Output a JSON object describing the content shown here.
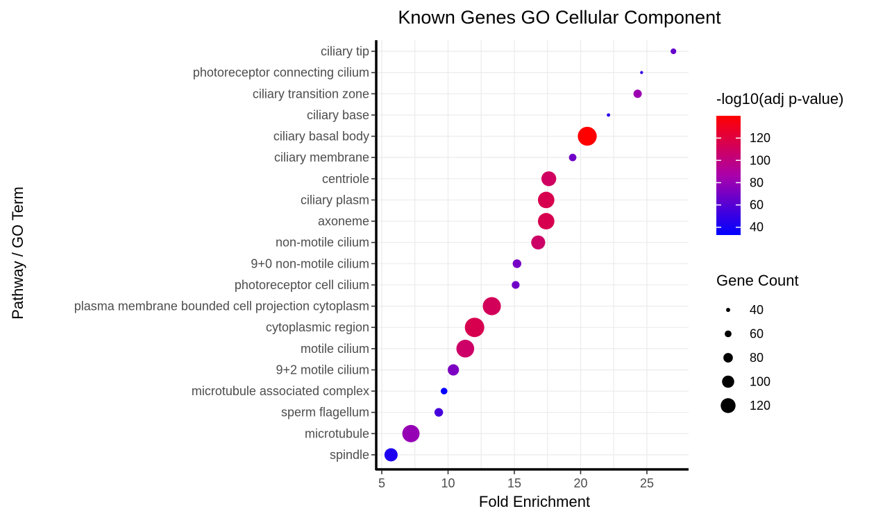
{
  "chart_data": {
    "type": "scatter",
    "title": "Known Genes GO Cellular Component",
    "xlabel": "Fold Enrichment",
    "ylabel": "Pathway / GO Term",
    "xlim": [
      4.7,
      28.0
    ],
    "xticks": [
      5,
      10,
      15,
      20,
      25
    ],
    "grid": true,
    "points": [
      {
        "term": "ciliary tip",
        "fold_enrichment": 27.0,
        "neg_log10_adj_p": 65,
        "gene_count": 44
      },
      {
        "term": "photoreceptor connecting cilium",
        "fold_enrichment": 24.6,
        "neg_log10_adj_p": 50,
        "gene_count": 28
      },
      {
        "term": "ciliary transition zone",
        "fold_enrichment": 24.3,
        "neg_log10_adj_p": 82,
        "gene_count": 60
      },
      {
        "term": "ciliary base",
        "fold_enrichment": 22.1,
        "neg_log10_adj_p": 45,
        "gene_count": 30
      },
      {
        "term": "ciliary basal body",
        "fold_enrichment": 20.5,
        "neg_log10_adj_p": 140,
        "gene_count": 125
      },
      {
        "term": "ciliary membrane",
        "fold_enrichment": 19.4,
        "neg_log10_adj_p": 68,
        "gene_count": 55
      },
      {
        "term": "centriole",
        "fold_enrichment": 17.6,
        "neg_log10_adj_p": 110,
        "gene_count": 100
      },
      {
        "term": "ciliary plasm",
        "fold_enrichment": 17.4,
        "neg_log10_adj_p": 115,
        "gene_count": 110
      },
      {
        "term": "axoneme",
        "fold_enrichment": 17.4,
        "neg_log10_adj_p": 115,
        "gene_count": 110
      },
      {
        "term": "non-motile cilium",
        "fold_enrichment": 16.8,
        "neg_log10_adj_p": 108,
        "gene_count": 95
      },
      {
        "term": "9+0 non-motile cilium",
        "fold_enrichment": 15.2,
        "neg_log10_adj_p": 70,
        "gene_count": 62
      },
      {
        "term": "photoreceptor cell cilium",
        "fold_enrichment": 15.1,
        "neg_log10_adj_p": 68,
        "gene_count": 57
      },
      {
        "term": "plasma membrane bounded cell projection cytoplasm",
        "fold_enrichment": 13.3,
        "neg_log10_adj_p": 112,
        "gene_count": 120
      },
      {
        "term": "cytoplasmic region",
        "fold_enrichment": 12.0,
        "neg_log10_adj_p": 115,
        "gene_count": 128
      },
      {
        "term": "motile cilium",
        "fold_enrichment": 11.3,
        "neg_log10_adj_p": 108,
        "gene_count": 118
      },
      {
        "term": "9+2 motile cilium",
        "fold_enrichment": 10.4,
        "neg_log10_adj_p": 72,
        "gene_count": 78
      },
      {
        "term": "microtubule associated complex",
        "fold_enrichment": 9.7,
        "neg_log10_adj_p": 35,
        "gene_count": 50
      },
      {
        "term": "sperm flagellum",
        "fold_enrichment": 9.3,
        "neg_log10_adj_p": 55,
        "gene_count": 62
      },
      {
        "term": "microtubule",
        "fold_enrichment": 7.2,
        "neg_log10_adj_p": 80,
        "gene_count": 115
      },
      {
        "term": "spindle",
        "fold_enrichment": 5.7,
        "neg_log10_adj_p": 42,
        "gene_count": 90
      }
    ],
    "color_legend": {
      "title": "-log10(adj p-value)",
      "range": [
        33,
        140
      ],
      "ticks": [
        40,
        60,
        80,
        100,
        120
      ],
      "low_color": "#0000ff",
      "high_color": "#ff0000"
    },
    "size_legend": {
      "title": "Gene Count",
      "values": [
        40,
        60,
        80,
        100,
        120
      ]
    },
    "legend_position": "right"
  }
}
